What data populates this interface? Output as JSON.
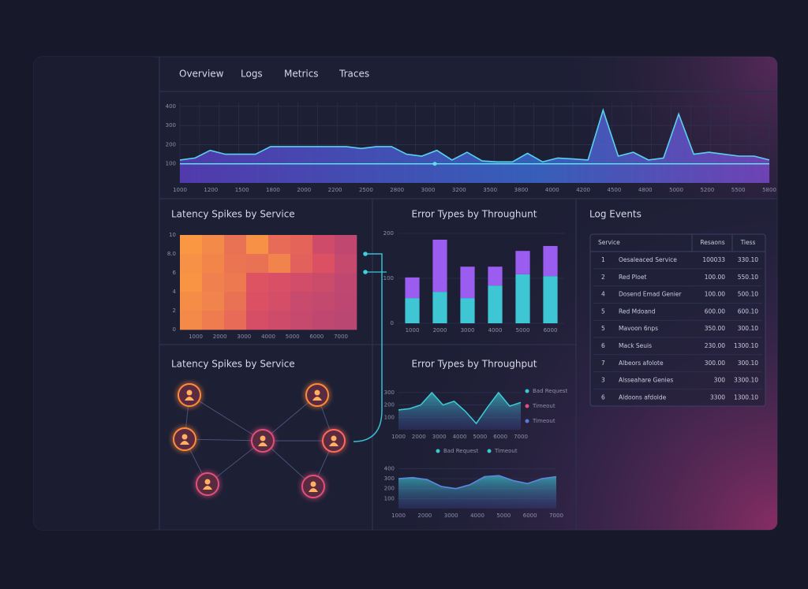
{
  "tabs": [
    "Overview",
    "Logs",
    "Metrics",
    "Traces"
  ],
  "top_chart": {
    "type": "area",
    "values": [
      120,
      130,
      170,
      150,
      150,
      150,
      190,
      190,
      190,
      190,
      190,
      190,
      180,
      190,
      190,
      150,
      140,
      170,
      120,
      160,
      115,
      110,
      110,
      155,
      110,
      130,
      125,
      120,
      380,
      140,
      160,
      120,
      130,
      360,
      150,
      160,
      150,
      140,
      140,
      120
    ],
    "threshold": 100,
    "color": "#6a4fd0",
    "ylim": [
      0,
      420
    ],
    "yticks": [
      100,
      200,
      300,
      400
    ],
    "xlabels": [
      "1000",
      "1200",
      "1500",
      "1800",
      "2000",
      "2200",
      "2500",
      "2800",
      "3000",
      "3200",
      "3500",
      "3800",
      "4000",
      "4200",
      "4500",
      "4800",
      "5000",
      "5200",
      "5500",
      "5800"
    ]
  },
  "heatmap": {
    "type": "heatmap",
    "title": "Latency Spikes by Service",
    "rows": [
      [
        92,
        84,
        70,
        88,
        66,
        62,
        40,
        30
      ],
      [
        88,
        82,
        72,
        70,
        80,
        60,
        50,
        34
      ],
      [
        90,
        78,
        74,
        52,
        48,
        42,
        38,
        30
      ],
      [
        86,
        80,
        70,
        50,
        44,
        36,
        32,
        28
      ],
      [
        84,
        76,
        66,
        46,
        40,
        34,
        30,
        26
      ]
    ],
    "ylabels": [
      "10",
      "8.0",
      "6",
      "4",
      "2",
      "0"
    ],
    "xlabels": [
      "1000",
      "2000",
      "3000",
      "4000",
      "5000",
      "6000",
      "7000"
    ]
  },
  "bars": {
    "type": "bar",
    "title": "Error Types by Throughunt",
    "categories": [
      "1000",
      "2000",
      "3000",
      "4000",
      "5000",
      "6000"
    ],
    "series": [
      {
        "name": "Timeout",
        "color": "#3ec6d4",
        "values": [
          56,
          70,
          56,
          84,
          109,
          105
        ]
      },
      {
        "name": "Bad Request",
        "color": "#9b5cf0",
        "values": [
          46,
          116,
          70,
          42,
          52,
          67
        ]
      }
    ],
    "ylim": [
      0,
      200
    ],
    "yticks": [
      0,
      100,
      200
    ]
  },
  "network": {
    "title": "Latency Spikes by Service"
  },
  "line_a": {
    "type": "area",
    "title": "Error Types by Throughput",
    "values": [
      160,
      170,
      200,
      300,
      200,
      230,
      150,
      50,
      180,
      300,
      190,
      220
    ],
    "color": "#3cc8d0",
    "ylim": [
      0,
      350
    ],
    "yticks": [
      100,
      200,
      300
    ],
    "xlabels": [
      "1000",
      "2000",
      "3000",
      "4000",
      "5000",
      "6000",
      "7000"
    ],
    "legend": [
      {
        "label": "Bad Request",
        "color": "#3cc8d0"
      },
      {
        "label": "Timeout",
        "color": "#e0507a"
      },
      {
        "label": "Timeout",
        "color": "#5a78e0"
      }
    ]
  },
  "line_b": {
    "type": "area",
    "values": [
      300,
      310,
      290,
      220,
      200,
      240,
      320,
      330,
      280,
      250,
      300,
      320
    ],
    "color": "#5a8ae0",
    "ylim": [
      0,
      450
    ],
    "yticks": [
      100,
      200,
      300,
      400
    ],
    "xlabels": [
      "1000",
      "2000",
      "3000",
      "4000",
      "5000",
      "6000",
      "7000"
    ],
    "legend": [
      {
        "label": "Bad Request",
        "color": "#3cc8d0"
      },
      {
        "label": "Timeout",
        "color": "#3cc8d0"
      }
    ]
  },
  "log_events": {
    "title": "Log Events",
    "columns": [
      "Service",
      "Resaons",
      "Tiess"
    ],
    "rows": [
      [
        "1",
        "Oesaleaced Service",
        "100033",
        "330.10"
      ],
      [
        "2",
        "Red Ploet",
        "100.00",
        "550.10"
      ],
      [
        "4",
        "Dosend Emad Genier",
        "100.00",
        "500.10"
      ],
      [
        "5",
        "Red Mdoand",
        "600.00",
        "600.10"
      ],
      [
        "5",
        "Mavoon 6nps",
        "350.00",
        "300.10"
      ],
      [
        "6",
        "Mack Seuis",
        "230.00",
        "1300.10"
      ],
      [
        "7",
        "Albeors afolote",
        "300.00",
        "300.10"
      ],
      [
        "3",
        "Alsseahare Genies",
        "300",
        "3300.10"
      ],
      [
        "6",
        "Aldoons afdolde",
        "3300",
        "1300.10"
      ]
    ]
  }
}
